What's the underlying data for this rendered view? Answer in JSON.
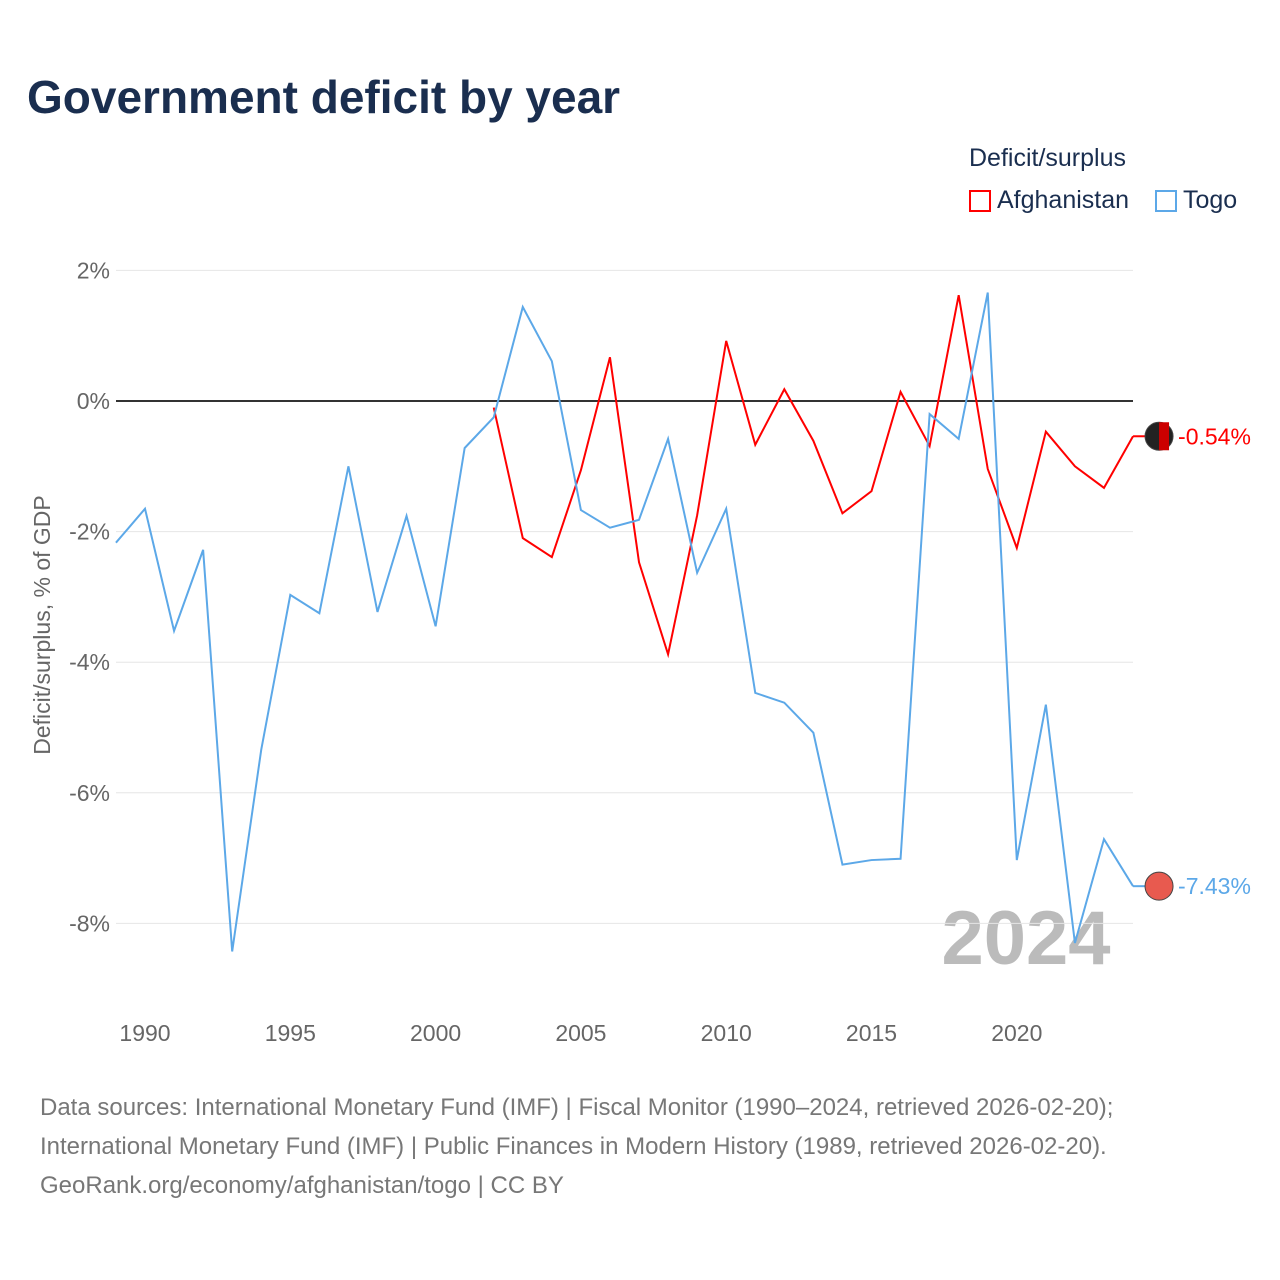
{
  "title": "Government deficit by year",
  "legend": {
    "title": "Deficit/surplus",
    "items": [
      {
        "name": "Afghanistan",
        "color": "#ff0000"
      },
      {
        "name": "Togo",
        "color": "#5ca8e8"
      }
    ]
  },
  "footer": [
    "Data sources: International Monetary Fund (IMF) | Fiscal Monitor (1990–2024, retrieved 2026-02-20);",
    "International Monetary Fund (IMF) | Public Finances in Modern History (1989, retrieved 2026-02-20).",
    "GeoRank.org/economy/afghanistan/togo | CC BY"
  ],
  "chart_data": {
    "type": "line",
    "title": "Government deficit by year",
    "xlabel": "",
    "ylabel": "Deficit/surplus, % of GDP",
    "xlim": [
      1989,
      2024
    ],
    "ylim": [
      -9.2,
      2.2
    ],
    "x_ticks": [
      1990,
      1995,
      2000,
      2005,
      2010,
      2015,
      2020
    ],
    "y_ticks": [
      2,
      0,
      -2,
      -4,
      -6,
      -8
    ],
    "y_tick_labels": [
      "2%",
      "0%",
      "-2%",
      "-4%",
      "-6%",
      "-8%"
    ],
    "year_watermark": "2024",
    "legend_position": "top-right",
    "series": [
      {
        "name": "Afghanistan",
        "color": "#ff0000",
        "end_label": "-0.54%",
        "x": [
          2002,
          2003,
          2004,
          2005,
          2006,
          2007,
          2008,
          2009,
          2010,
          2011,
          2012,
          2013,
          2014,
          2015,
          2016,
          2017,
          2018,
          2019,
          2020,
          2021,
          2022,
          2023,
          2024
        ],
        "values": [
          -0.1,
          -2.1,
          -2.39,
          -1.06,
          0.67,
          -2.47,
          -3.88,
          -1.75,
          0.92,
          -0.67,
          0.18,
          -0.61,
          -1.72,
          -1.38,
          0.14,
          -0.69,
          1.62,
          -1.04,
          -2.25,
          -0.47,
          -1.0,
          -1.33,
          -0.54
        ]
      },
      {
        "name": "Togo",
        "color": "#5ca8e8",
        "end_label": "-7.43%",
        "x": [
          1989,
          1990,
          1991,
          1992,
          1993,
          1994,
          1995,
          1996,
          1997,
          1998,
          1999,
          2000,
          2001,
          2002,
          2003,
          2004,
          2005,
          2006,
          2007,
          2008,
          2009,
          2010,
          2011,
          2012,
          2013,
          2014,
          2015,
          2016,
          2017,
          2018,
          2019,
          2020,
          2021,
          2022,
          2023,
          2024
        ],
        "values": [
          -2.17,
          -1.65,
          -3.52,
          -2.28,
          -8.43,
          -5.34,
          -2.97,
          -3.25,
          -1.0,
          -3.23,
          -1.76,
          -3.45,
          -0.72,
          -0.25,
          1.44,
          0.61,
          -1.67,
          -1.94,
          -1.82,
          -0.58,
          -2.63,
          -1.65,
          -4.47,
          -4.62,
          -5.08,
          -7.1,
          -7.03,
          -7.01,
          -0.2,
          -0.58,
          1.66,
          -7.03,
          -4.65,
          -8.3,
          -6.71,
          -7.43
        ]
      }
    ]
  }
}
